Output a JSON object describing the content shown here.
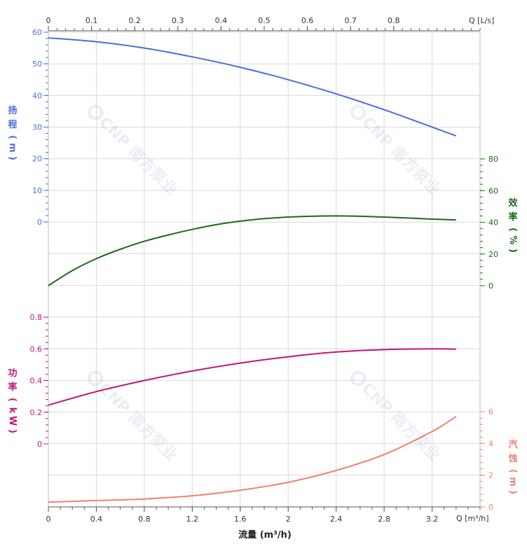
{
  "chart_data": {
    "type": "line",
    "x_bottom": {
      "unit_label": "Q [m³/h]",
      "ticks": [
        "0",
        "0.4",
        "0.8",
        "1.2",
        "1.6",
        "2",
        "2.4",
        "2.8",
        "3.2"
      ],
      "range": [
        0,
        3.6
      ]
    },
    "x_top": {
      "unit_label": "Q [L/s]",
      "ticks": [
        "0",
        "0.1",
        "0.2",
        "0.3",
        "0.4",
        "0.5",
        "0.6",
        "0.7",
        "0.8"
      ],
      "range": [
        0,
        1.0
      ]
    },
    "xlabel": "流量 (m³/h)",
    "grid": true,
    "series": [
      {
        "name": "扬程",
        "axis_title": [
          "扬",
          "程",
          "(",
          "m",
          ")"
        ],
        "color": "#4a6fdc",
        "ticks": [
          "0",
          "10",
          "20",
          "30",
          "40",
          "50",
          "60"
        ],
        "ylim": [
          0,
          60
        ],
        "x": [
          0,
          0.4,
          0.8,
          1.2,
          1.6,
          2.0,
          2.4,
          2.8,
          3.2,
          3.4
        ],
        "values": [
          58.2,
          57,
          55,
          52.2,
          48.9,
          45,
          40.5,
          35.5,
          30,
          27.2
        ]
      },
      {
        "name": "效率",
        "axis_title": [
          "效",
          "率",
          "(",
          "%",
          ")"
        ],
        "color": "#1a6b1a",
        "ticks": [
          "0",
          "20",
          "40",
          "60",
          "80"
        ],
        "ylim": [
          0,
          80
        ],
        "x": [
          0,
          0.2,
          0.4,
          0.6,
          0.8,
          1.0,
          1.2,
          1.4,
          1.6,
          1.8,
          2.0,
          2.2,
          2.4,
          2.6,
          2.8,
          3.0,
          3.2,
          3.4
        ],
        "values": [
          0,
          9.5,
          17,
          23,
          28,
          32,
          35.5,
          38.5,
          40.7,
          42.3,
          43.3,
          43.8,
          44,
          43.8,
          43.3,
          42.7,
          42,
          41.5
        ]
      },
      {
        "name": "功率",
        "axis_title": [
          "功",
          "率",
          "(",
          "k",
          "W",
          ")"
        ],
        "color": "#c0177a",
        "ticks": [
          "0",
          "0.2",
          "0.4",
          "0.6",
          "0.8"
        ],
        "ylim": [
          0,
          0.8
        ],
        "x": [
          0,
          0.4,
          0.8,
          1.2,
          1.6,
          2.0,
          2.4,
          2.8,
          3.2,
          3.4
        ],
        "values": [
          0.245,
          0.33,
          0.4,
          0.46,
          0.51,
          0.55,
          0.58,
          0.595,
          0.6,
          0.598
        ]
      },
      {
        "name": "汽蚀",
        "axis_title": [
          "汽",
          "蚀",
          "(",
          "m",
          ")"
        ],
        "color": "#f08070",
        "ticks": [
          "0",
          "2",
          "4",
          "6"
        ],
        "ylim": [
          0,
          6
        ],
        "x": [
          0,
          0.4,
          0.8,
          1.2,
          1.6,
          2.0,
          2.4,
          2.8,
          3.2,
          3.4
        ],
        "values": [
          0.3,
          0.4,
          0.5,
          0.7,
          1.05,
          1.55,
          2.3,
          3.3,
          4.75,
          5.7
        ]
      }
    ],
    "watermark": "CNP 南方泵业"
  }
}
